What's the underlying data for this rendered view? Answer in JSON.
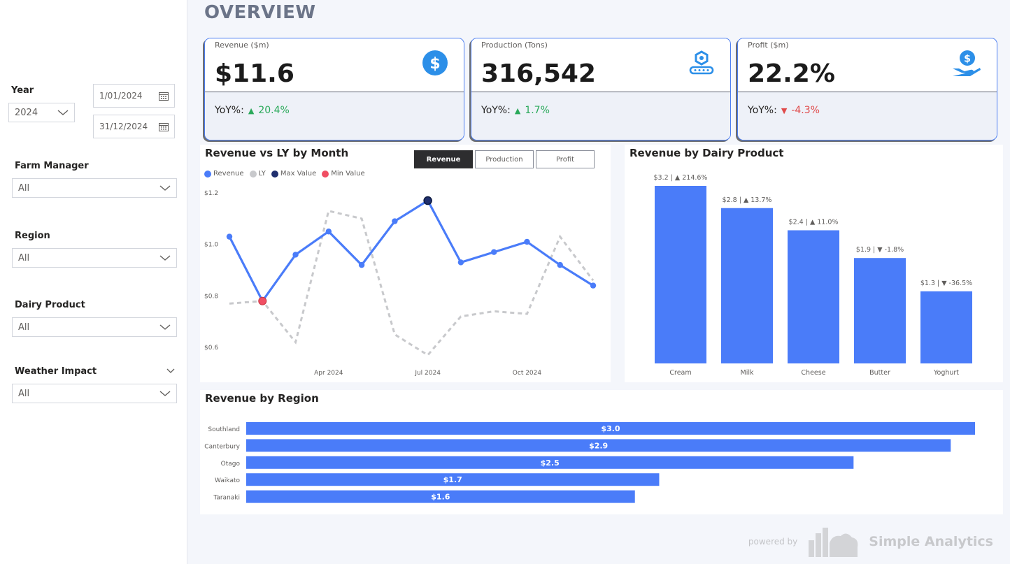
{
  "page_title": "OVERVIEW",
  "filters": {
    "year_label": "Year",
    "year_value": "2024",
    "date_start": "1/01/2024",
    "date_end": "31/12/2024",
    "farm_manager_label": "Farm Manager",
    "farm_manager_value": "All",
    "region_label": "Region",
    "region_value": "All",
    "dairy_product_label": "Dairy Product",
    "dairy_product_value": "All",
    "weather_label": "Weather Impact",
    "weather_value": "All"
  },
  "kpis": [
    {
      "label": "Revenue ($m)",
      "value": "$11.6",
      "yoy_label": "YoY%:",
      "yoy_value": "20.4%",
      "direction": "up",
      "icon": "dollar-circle-icon"
    },
    {
      "label": "Production (Tons)",
      "value": "316,542",
      "yoy_label": "YoY%:",
      "yoy_value": "1.7%",
      "direction": "up",
      "icon": "conveyor-icon"
    },
    {
      "label": "Profit ($m)",
      "value": "22.2%",
      "yoy_label": "YoY%:",
      "yoy_value": "-4.3%",
      "direction": "down",
      "icon": "hand-dollar-icon"
    }
  ],
  "colors": {
    "accent": "#4a7cf9",
    "ly": "#c8c9cc",
    "max": "#1f2f6e",
    "min": "#f04e63",
    "up": "#2aa95a",
    "down": "#e04a4a"
  },
  "line_panel": {
    "title": "Revenue vs LY by Month",
    "toggles": [
      "Revenue",
      "Production",
      "Profit"
    ],
    "active_toggle": "Revenue",
    "legend": [
      "Revenue",
      "LY",
      "Max Value",
      "Min Value"
    ]
  },
  "product_panel": {
    "title": "Revenue by Dairy Product"
  },
  "region_panel": {
    "title": "Revenue by Region"
  },
  "footer": {
    "powered": "powered by",
    "brand": "Simple Analytics"
  },
  "chart_data": [
    {
      "type": "line",
      "title": "Revenue vs LY by Month",
      "x": [
        "2024-01",
        "2024-02",
        "2024-03",
        "2024-04",
        "2024-05",
        "2024-06",
        "2024-07",
        "2024-08",
        "2024-09",
        "2024-10",
        "2024-11",
        "2024-12"
      ],
      "x_tick_labels": [
        {
          "month": "2024-04",
          "label": "Apr 2024"
        },
        {
          "month": "2024-07",
          "label": "Jul 2024"
        },
        {
          "month": "2024-10",
          "label": "Oct 2024"
        }
      ],
      "y_tick_labels": [
        "$1.2",
        "$1.0",
        "$0.8",
        "$0.6"
      ],
      "y_ticks": [
        1.2,
        1.0,
        0.8,
        0.6
      ],
      "ylim": [
        0.6,
        1.2
      ],
      "series": [
        {
          "name": "Revenue",
          "values": [
            1.03,
            0.78,
            0.96,
            1.05,
            0.92,
            1.09,
            1.17,
            0.93,
            0.97,
            1.01,
            0.92,
            0.84
          ]
        },
        {
          "name": "LY",
          "values": [
            0.77,
            0.78,
            0.62,
            1.13,
            1.1,
            0.65,
            0.57,
            0.72,
            0.74,
            0.73,
            1.03,
            0.86
          ]
        }
      ],
      "max_point": {
        "month": "2024-07",
        "value": 1.17
      },
      "min_point": {
        "month": "2024-02",
        "value": 0.78
      }
    },
    {
      "type": "bar",
      "title": "Revenue by Dairy Product",
      "categories": [
        "Cream",
        "Milk",
        "Cheese",
        "Butter",
        "Yoghurt"
      ],
      "values": [
        3.2,
        2.8,
        2.4,
        1.9,
        1.3
      ],
      "labels": [
        "$3.2",
        "$2.8",
        "$2.4",
        "$1.9",
        "$1.3"
      ],
      "yoy": [
        "214.6%",
        "13.7%",
        "11.0%",
        "-1.8%",
        "-36.5%"
      ],
      "yoy_direction": [
        "up",
        "up",
        "up",
        "down",
        "down"
      ],
      "ylim": [
        0,
        3.2
      ]
    },
    {
      "type": "bar",
      "orientation": "horizontal",
      "title": "Revenue by Region",
      "categories": [
        "Southland",
        "Canterbury",
        "Otago",
        "Waikato",
        "Taranaki"
      ],
      "values": [
        3.0,
        2.9,
        2.5,
        1.7,
        1.6
      ],
      "labels": [
        "$3.0",
        "$2.9",
        "$2.5",
        "$1.7",
        "$1.6"
      ],
      "xlim": [
        0,
        3.0
      ]
    }
  ]
}
